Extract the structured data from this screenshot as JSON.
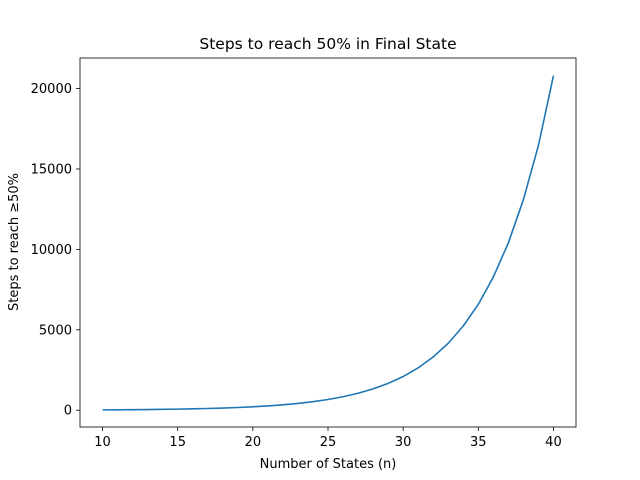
{
  "chart_data": {
    "type": "line",
    "title": "Steps to reach 50% in Final State",
    "xlabel": "Number of States (n)",
    "ylabel": "Steps to reach ≥50%",
    "xlim": [
      8.5,
      41.5
    ],
    "ylim": [
      -1045,
      21900
    ],
    "xticks": [
      10,
      15,
      20,
      25,
      30,
      35,
      40
    ],
    "yticks": [
      0,
      5000,
      10000,
      15000,
      20000
    ],
    "grid": false,
    "legend": "none",
    "series": [
      {
        "color": "#1f77b4",
        "x": [
          10,
          11,
          12,
          13,
          14,
          15,
          16,
          17,
          18,
          19,
          20,
          21,
          22,
          23,
          24,
          25,
          26,
          27,
          28,
          29,
          30,
          31,
          32,
          33,
          34,
          35,
          36,
          37,
          38,
          39,
          40
        ],
        "y": [
          20,
          26,
          33,
          42,
          53,
          67,
          85,
          106,
          134,
          168,
          212,
          266,
          335,
          421,
          530,
          666,
          837,
          1053,
          1324,
          1665,
          2094,
          2633,
          3311,
          4163,
          5235,
          6583,
          8278,
          10409,
          13089,
          16459,
          20800
        ]
      }
    ]
  }
}
